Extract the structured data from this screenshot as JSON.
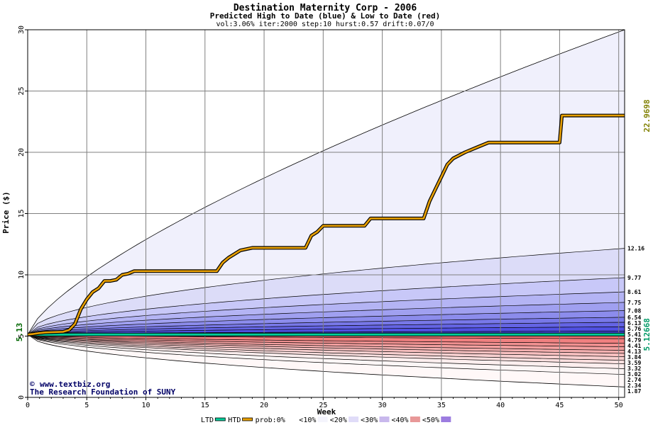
{
  "chart_data": {
    "type": "area",
    "title": "Destination Maternity Corp - 2006",
    "subtitle": "Predicted High to Date (blue) &  Low to Date (red)",
    "params": "vol:3.06% iter:2000 step:10 hurst:0.57 drift:0.07/0",
    "xlabel": "Week",
    "ylabel": "Price ($)",
    "xlim": [
      0,
      50.5
    ],
    "ylim": [
      0,
      30
    ],
    "x_ticks": [
      0,
      5,
      10,
      15,
      20,
      25,
      30,
      35,
      40,
      45,
      50
    ],
    "y_ticks": [
      0,
      5,
      10,
      15,
      20,
      25,
      30
    ],
    "grid": true,
    "start_price": 5.13,
    "start_price_label": "5.13",
    "right_labels": [
      {
        "text": "22.9698",
        "value": 22.9698,
        "color": "#808000"
      },
      {
        "text": "5.12668",
        "value": 5.12668,
        "color": "#009966"
      }
    ],
    "envelope": {
      "upper_end": 30.0,
      "lower_end": 0.85,
      "color": "#000000"
    },
    "high_percentiles": [
      {
        "label": "12.16",
        "end": 12.16
      },
      {
        "label": "9.77",
        "end": 9.77
      },
      {
        "label": "8.61",
        "end": 8.61
      },
      {
        "label": "7.75",
        "end": 7.75
      },
      {
        "label": "7.08",
        "end": 7.08
      },
      {
        "label": "6.54",
        "end": 6.54
      },
      {
        "label": "6.13",
        "end": 6.13
      },
      {
        "label": "5.76",
        "end": 5.76
      },
      {
        "label": "5.41",
        "end": 5.41
      }
    ],
    "low_percentiles": [
      {
        "label": "4.79",
        "end": 4.79
      },
      {
        "label": "4.41",
        "end": 4.41
      },
      {
        "label": "4.13",
        "end": 4.13
      },
      {
        "label": "3.84",
        "end": 3.84
      },
      {
        "label": "3.59",
        "end": 3.59
      },
      {
        "label": "3.32",
        "end": 3.32
      },
      {
        "label": "3.02",
        "end": 3.02
      },
      {
        "label": "2.74",
        "end": 2.74
      },
      {
        "label": "2.34",
        "end": 2.34
      },
      {
        "label": "1.87",
        "end": 1.87
      }
    ],
    "high_fill_colors": [
      "#f0f0fc",
      "#dcdcf8",
      "#c8c8f8",
      "#b4b4f4",
      "#a0a0f0",
      "#8c8cec",
      "#7878e8",
      "#6464e4",
      "#5050e0"
    ],
    "low_fill_colors": [
      "#f07070",
      "#f08080",
      "#f09090",
      "#f4a0a0",
      "#f4b0b0",
      "#f8c0c0",
      "#f8d0d0",
      "#fce0e0",
      "#fceeee",
      "#fcf6f6"
    ],
    "series": [
      {
        "name": "HTD",
        "color": "#e8a000",
        "points": [
          [
            0,
            5.13
          ],
          [
            0.5,
            5.18
          ],
          [
            1,
            5.25
          ],
          [
            1.5,
            5.3
          ],
          [
            2,
            5.32
          ],
          [
            3,
            5.35
          ],
          [
            3.5,
            5.5
          ],
          [
            4,
            6.0
          ],
          [
            4.5,
            7.2
          ],
          [
            5,
            8.0
          ],
          [
            5.5,
            8.6
          ],
          [
            6,
            8.9
          ],
          [
            6.5,
            9.5
          ],
          [
            7,
            9.5
          ],
          [
            7.5,
            9.6
          ],
          [
            8,
            10.0
          ],
          [
            8.5,
            10.1
          ],
          [
            9,
            10.3
          ],
          [
            16,
            10.3
          ],
          [
            16.5,
            11.0
          ],
          [
            17,
            11.4
          ],
          [
            17.5,
            11.7
          ],
          [
            18,
            12.0
          ],
          [
            19,
            12.2
          ],
          [
            23.5,
            12.2
          ],
          [
            24,
            13.2
          ],
          [
            24.5,
            13.5
          ],
          [
            25,
            14.0
          ],
          [
            28.5,
            14.0
          ],
          [
            29,
            14.6
          ],
          [
            33.5,
            14.6
          ],
          [
            34,
            16.0
          ],
          [
            34.5,
            17.0
          ],
          [
            35,
            18.0
          ],
          [
            35.5,
            19.0
          ],
          [
            36,
            19.5
          ],
          [
            37,
            20.0
          ],
          [
            38,
            20.4
          ],
          [
            39,
            20.8
          ],
          [
            45,
            20.8
          ],
          [
            45.2,
            23.0
          ],
          [
            50.5,
            23.0
          ]
        ]
      },
      {
        "name": "LTD",
        "color": "#00cc99",
        "points": [
          [
            0,
            5.13
          ],
          [
            2,
            5.12
          ],
          [
            4,
            5.13
          ],
          [
            50.5,
            5.13
          ]
        ]
      }
    ],
    "legend": {
      "placement": "bottom",
      "items": [
        {
          "label": "LTD",
          "color": "#00cc99",
          "kind": "line"
        },
        {
          "label": "HTD",
          "color": "#e8a000",
          "kind": "line"
        },
        {
          "label": "prob:0%",
          "color": "#ffffff",
          "kind": "swatch"
        },
        {
          "label": "<10%",
          "color": "#f4f4fc",
          "kind": "swatch"
        },
        {
          "label": "<20%",
          "color": "#e0dcf8",
          "kind": "swatch"
        },
        {
          "label": "<30%",
          "color": "#c8b8ec",
          "kind": "swatch"
        },
        {
          "label": "<40%",
          "color": "#e89898",
          "kind": "swatch"
        },
        {
          "label": "<50%",
          "color": "#9c7ce0",
          "kind": "swatch"
        }
      ]
    }
  },
  "credit": {
    "line1": "www.textbiz.org",
    "line2": "The Research Foundation of SUNY"
  }
}
